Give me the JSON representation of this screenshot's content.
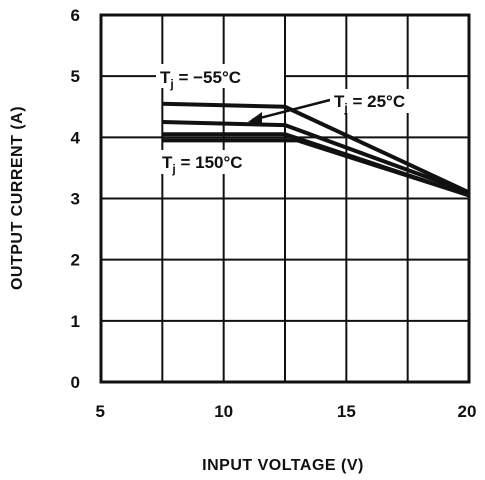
{
  "chart_data": {
    "type": "line",
    "title": "",
    "xlabel": "INPUT VOLTAGE (V)",
    "ylabel": "OUTPUT CURRENT (A)",
    "xlim": [
      5,
      20
    ],
    "ylim": [
      0,
      6
    ],
    "x_ticks": [
      "5",
      "10",
      "15",
      "20"
    ],
    "y_ticks": [
      "0",
      "1",
      "2",
      "3",
      "4",
      "5",
      "6"
    ],
    "grid": true,
    "annotations": [
      {
        "base": "T",
        "sub": "j",
        "rest": " = −55°C"
      },
      {
        "base": "T",
        "sub": "j",
        "rest": " = 25°C"
      },
      {
        "base": "T",
        "sub": "j",
        "rest": " = 150°C"
      }
    ],
    "series": [
      {
        "x": [
          7.5,
          12.5,
          20
        ],
        "y": [
          4.55,
          4.5,
          3.1
        ]
      },
      {
        "x": [
          7.5,
          12.5,
          20
        ],
        "y": [
          4.25,
          4.2,
          3.1
        ]
      },
      {
        "x": [
          7.5,
          12.5,
          20
        ],
        "y": [
          4.05,
          4.05,
          3.05
        ]
      },
      {
        "x": [
          7.5,
          13.0,
          20
        ],
        "y": [
          3.95,
          3.95,
          3.05
        ]
      }
    ]
  }
}
